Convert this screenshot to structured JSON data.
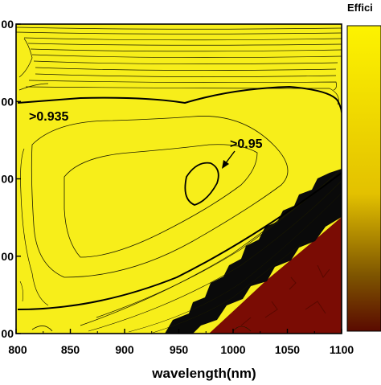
{
  "chart_data": {
    "type": "heatmap",
    "subtype": "contour",
    "title": "",
    "xlabel": "wavelength(nm)",
    "ylabel": "",
    "xlim": [
      800,
      1100
    ],
    "x_ticks": [
      800,
      850,
      900,
      950,
      1000,
      1050,
      1100
    ],
    "y_tick_labels": [
      "00",
      "00",
      "00",
      "00",
      "00"
    ],
    "colorbar_label": "Effici",
    "colorbar_colors": [
      "#fdf300",
      "#e3c100",
      "#7d5400",
      "#5a0a00"
    ],
    "fill_colors": {
      "high": "#f7ee1a",
      "transition": "#0a0a0a",
      "low": "#7a0c04"
    },
    "annotations": [
      {
        "text": ">0.935",
        "wavelength_nm": 808
      },
      {
        "text": ">0.95",
        "wavelength_nm": 974
      }
    ],
    "grid": false
  }
}
